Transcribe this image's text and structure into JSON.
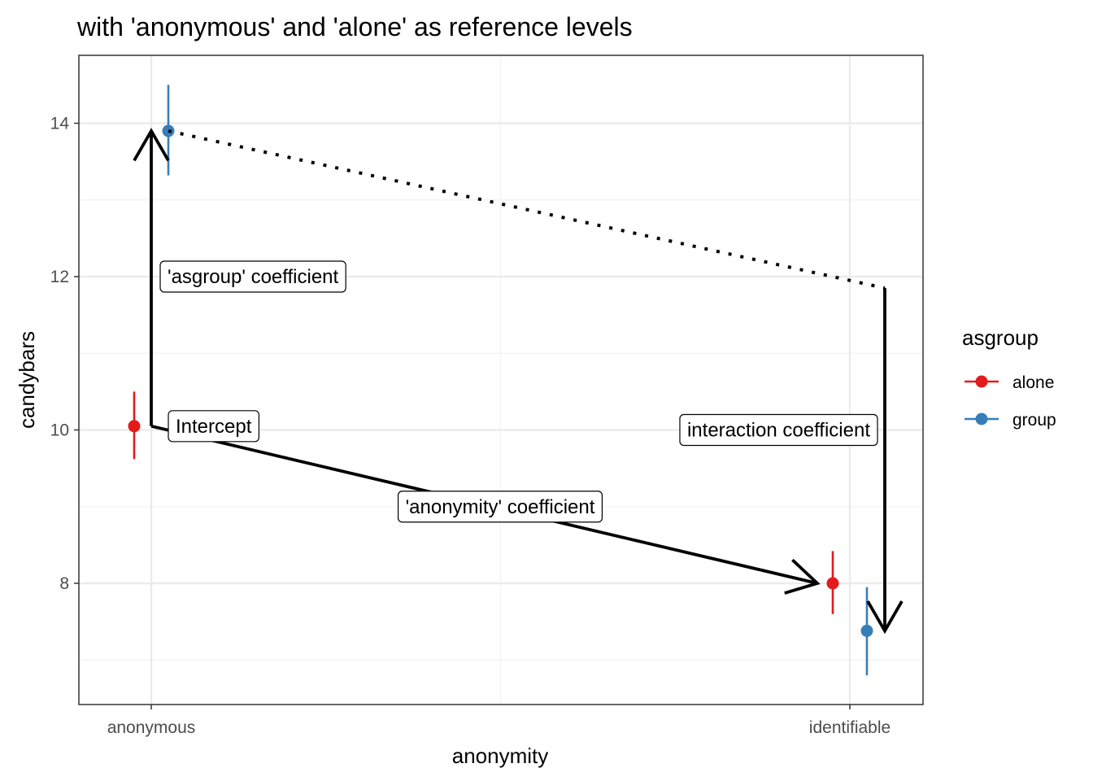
{
  "chart_data": {
    "type": "scatter",
    "title": "with 'anonymous' and 'alone' as reference levels",
    "xlabel": "anonymity",
    "ylabel": "candybars",
    "categories": [
      "anonymous",
      "identifiable"
    ],
    "ylim": [
      6.5,
      14.9
    ],
    "yticks": [
      8,
      10,
      12,
      14
    ],
    "grid": true,
    "legend": {
      "title": "asgroup",
      "position": "right"
    },
    "series": [
      {
        "name": "alone",
        "color": "#E41A1C",
        "points": [
          {
            "x": "anonymous",
            "y": 10.05,
            "lo": 9.62,
            "hi": 10.5
          },
          {
            "x": "identifiable",
            "y": 8.0,
            "lo": 7.6,
            "hi": 8.42
          }
        ]
      },
      {
        "name": "group",
        "color": "#377EB8",
        "points": [
          {
            "x": "anonymous",
            "y": 13.9,
            "lo": 13.32,
            "hi": 14.5
          },
          {
            "x": "identifiable",
            "y": 7.38,
            "lo": 6.8,
            "hi": 7.95
          }
        ]
      }
    ],
    "annotations": [
      {
        "label": "Intercept"
      },
      {
        "label": "'asgroup' coefficient"
      },
      {
        "label": "'anonymity' coefficient"
      },
      {
        "label": "interaction coefficient"
      }
    ]
  }
}
